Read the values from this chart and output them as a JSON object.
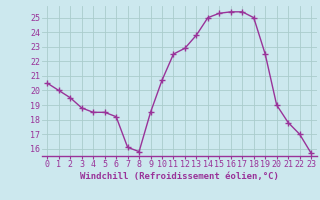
{
  "x": [
    0,
    1,
    2,
    3,
    4,
    5,
    6,
    7,
    8,
    9,
    10,
    11,
    12,
    13,
    14,
    15,
    16,
    17,
    18,
    19,
    20,
    21,
    22,
    23
  ],
  "y": [
    20.5,
    20.0,
    19.5,
    18.8,
    18.5,
    18.5,
    18.2,
    16.1,
    15.8,
    18.5,
    20.7,
    22.5,
    22.9,
    23.8,
    25.0,
    25.3,
    25.4,
    25.4,
    25.0,
    22.5,
    19.0,
    17.8,
    17.0,
    15.7
  ],
  "line_color": "#993399",
  "marker": "+",
  "marker_size": 4,
  "linewidth": 1.0,
  "xlabel": "Windchill (Refroidissement éolien,°C)",
  "xlabel_fontsize": 6.5,
  "ytick_values": [
    16,
    17,
    18,
    19,
    20,
    21,
    22,
    23,
    24,
    25
  ],
  "ylim": [
    15.5,
    25.8
  ],
  "xlim": [
    -0.5,
    23.5
  ],
  "bg_color": "#cce8ee",
  "grid_color": "#aacccc",
  "line_color_axis": "#993399",
  "tick_color": "#993399",
  "tick_fontsize": 6.0,
  "font_family": "monospace"
}
